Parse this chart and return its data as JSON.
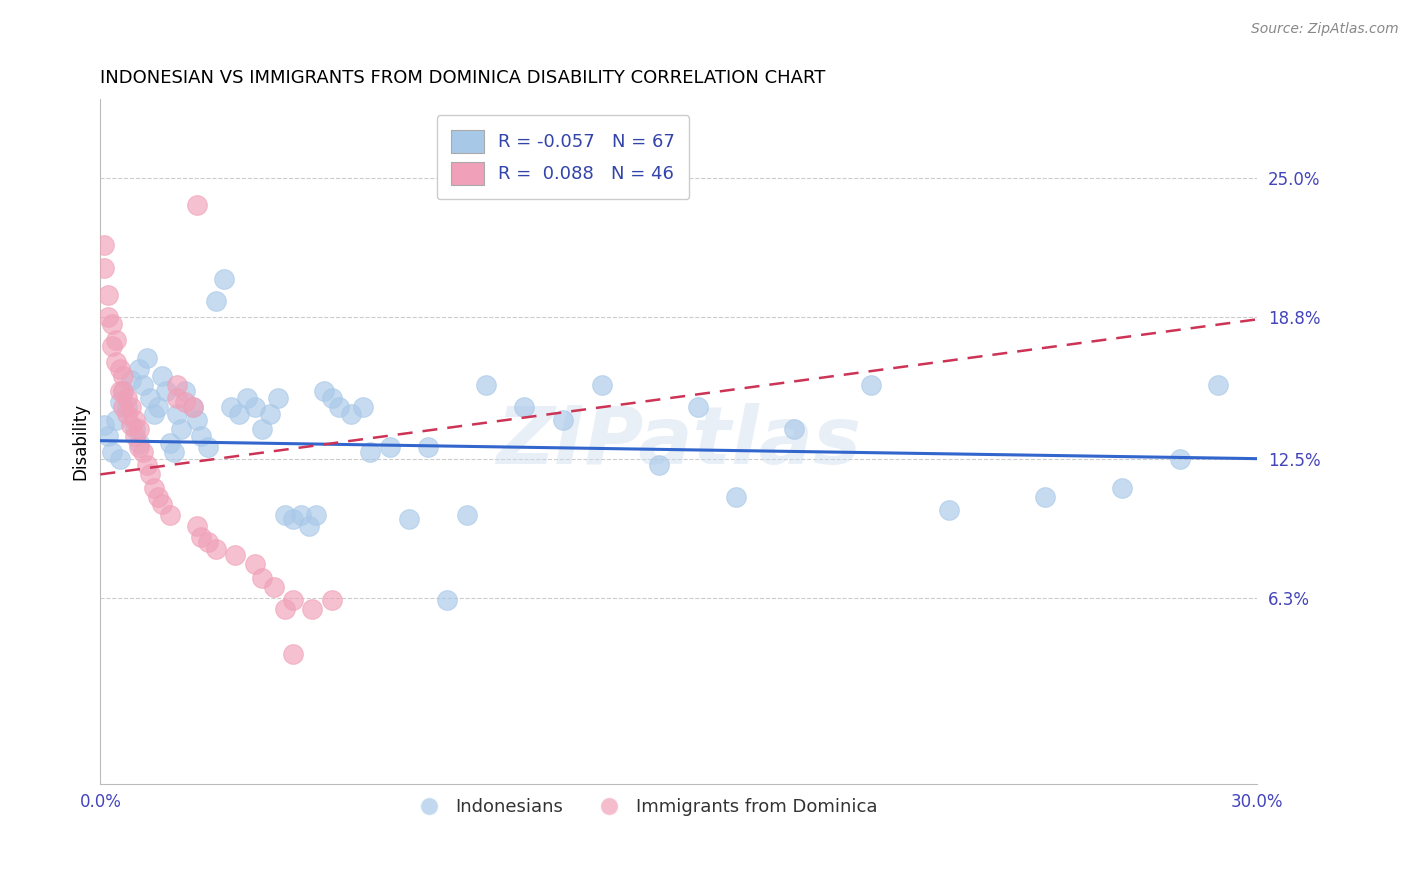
{
  "title": "INDONESIAN VS IMMIGRANTS FROM DOMINICA DISABILITY CORRELATION CHART",
  "source": "Source: ZipAtlas.com",
  "ylabel": "Disability",
  "blue_color": "#a8c8e8",
  "pink_color": "#f0a0b8",
  "line_blue_color": "#3366cc",
  "line_pink_color": "#cc3355",
  "legend_label_blue": "Indonesians",
  "legend_label_pink": "Immigrants from Dominica",
  "legend_r_blue": "R = -0.057",
  "legend_n_blue": "N = 67",
  "legend_r_pink": "R =  0.088",
  "legend_n_pink": "N = 46",
  "xlim": [
    0.0,
    0.3
  ],
  "ylim": [
    -0.02,
    0.285
  ],
  "ytick_values": [
    0.063,
    0.125,
    0.188,
    0.25
  ],
  "ytick_labels": [
    "6.3%",
    "12.5%",
    "18.8%",
    "25.0%"
  ],
  "blue_line_x0": 0.0,
  "blue_line_y0": 0.133,
  "blue_line_x1": 0.3,
  "blue_line_y1": 0.125,
  "pink_line_x0": 0.0,
  "pink_line_y0": 0.118,
  "pink_line_x1": 0.3,
  "pink_line_y1": 0.187,
  "indonesian_x": [
    0.001,
    0.002,
    0.003,
    0.004,
    0.005,
    0.005,
    0.006,
    0.007,
    0.008,
    0.009,
    0.01,
    0.01,
    0.011,
    0.012,
    0.013,
    0.014,
    0.015,
    0.016,
    0.017,
    0.018,
    0.019,
    0.02,
    0.021,
    0.022,
    0.024,
    0.025,
    0.026,
    0.028,
    0.03,
    0.032,
    0.034,
    0.036,
    0.038,
    0.04,
    0.042,
    0.044,
    0.046,
    0.048,
    0.05,
    0.052,
    0.054,
    0.056,
    0.058,
    0.06,
    0.062,
    0.065,
    0.068,
    0.07,
    0.075,
    0.08,
    0.085,
    0.09,
    0.095,
    0.1,
    0.11,
    0.12,
    0.13,
    0.145,
    0.155,
    0.165,
    0.18,
    0.2,
    0.22,
    0.245,
    0.265,
    0.28,
    0.29
  ],
  "indonesian_y": [
    0.14,
    0.135,
    0.128,
    0.142,
    0.15,
    0.125,
    0.155,
    0.148,
    0.16,
    0.138,
    0.165,
    0.132,
    0.158,
    0.17,
    0.152,
    0.145,
    0.148,
    0.162,
    0.155,
    0.132,
    0.128,
    0.145,
    0.138,
    0.155,
    0.148,
    0.142,
    0.135,
    0.13,
    0.195,
    0.205,
    0.148,
    0.145,
    0.152,
    0.148,
    0.138,
    0.145,
    0.152,
    0.1,
    0.098,
    0.1,
    0.095,
    0.1,
    0.155,
    0.152,
    0.148,
    0.145,
    0.148,
    0.128,
    0.13,
    0.098,
    0.13,
    0.062,
    0.1,
    0.158,
    0.148,
    0.142,
    0.158,
    0.122,
    0.148,
    0.108,
    0.138,
    0.158,
    0.102,
    0.108,
    0.112,
    0.125,
    0.158
  ],
  "dominica_x": [
    0.001,
    0.001,
    0.002,
    0.002,
    0.003,
    0.003,
    0.004,
    0.004,
    0.005,
    0.005,
    0.006,
    0.006,
    0.006,
    0.007,
    0.007,
    0.008,
    0.008,
    0.009,
    0.009,
    0.01,
    0.01,
    0.011,
    0.012,
    0.013,
    0.014,
    0.015,
    0.016,
    0.018,
    0.02,
    0.02,
    0.022,
    0.024,
    0.025,
    0.026,
    0.028,
    0.03,
    0.035,
    0.04,
    0.042,
    0.045,
    0.048,
    0.05,
    0.055,
    0.06,
    0.025,
    0.05
  ],
  "dominica_y": [
    0.22,
    0.21,
    0.198,
    0.188,
    0.185,
    0.175,
    0.178,
    0.168,
    0.165,
    0.155,
    0.162,
    0.155,
    0.148,
    0.152,
    0.145,
    0.148,
    0.14,
    0.142,
    0.135,
    0.138,
    0.13,
    0.128,
    0.122,
    0.118,
    0.112,
    0.108,
    0.105,
    0.1,
    0.158,
    0.152,
    0.15,
    0.148,
    0.095,
    0.09,
    0.088,
    0.085,
    0.082,
    0.078,
    0.072,
    0.068,
    0.058,
    0.062,
    0.058,
    0.062,
    0.238,
    0.038
  ]
}
